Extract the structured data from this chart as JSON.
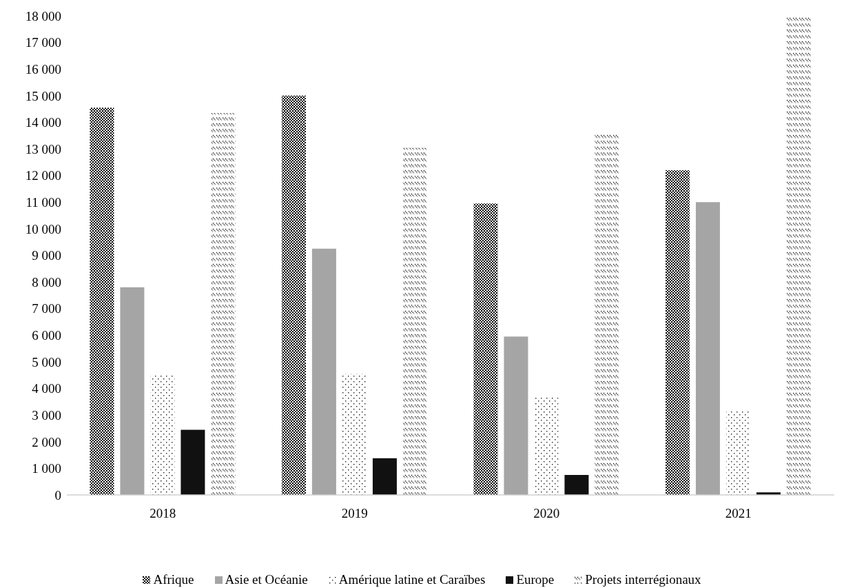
{
  "chart_data": {
    "type": "bar",
    "categories": [
      "2018",
      "2019",
      "2020",
      "2021"
    ],
    "series": [
      {
        "name": "Afrique",
        "color": "#000000",
        "values": [
          14550,
          15000,
          10950,
          12200
        ]
      },
      {
        "name": "Asie et Océanie",
        "color": "#a5a5a5",
        "values": [
          7800,
          9250,
          5950,
          11000
        ]
      },
      {
        "name": "Amérique latine et Caraïbes",
        "color": "#1a1a1a",
        "values": [
          4500,
          4550,
          3700,
          3150
        ]
      },
      {
        "name": "Europe",
        "color": "#111111",
        "values": [
          2450,
          1380,
          750,
          100
        ]
      },
      {
        "name": "Projets interrégionaux",
        "color": "#0d0d0d",
        "values": [
          14350,
          13050,
          13600,
          18000
        ]
      }
    ],
    "ylim": [
      0,
      18000
    ],
    "yticks": [
      {
        "value": 0,
        "label": "0"
      },
      {
        "value": 1000,
        "label": "1 000"
      },
      {
        "value": 2000,
        "label": "2 000"
      },
      {
        "value": 3000,
        "label": "3 000"
      },
      {
        "value": 4000,
        "label": "4 000"
      },
      {
        "value": 5000,
        "label": "5 000"
      },
      {
        "value": 6000,
        "label": "6 000"
      },
      {
        "value": 7000,
        "label": "7 000"
      },
      {
        "value": 8000,
        "label": "8 000"
      },
      {
        "value": 9000,
        "label": "9 000"
      },
      {
        "value": 10000,
        "label": "10 000"
      },
      {
        "value": 11000,
        "label": "11 000"
      },
      {
        "value": 12000,
        "label": "12 000"
      },
      {
        "value": 13000,
        "label": "13 000"
      },
      {
        "value": 14000,
        "label": "14 000"
      },
      {
        "value": 15000,
        "label": "15 000"
      },
      {
        "value": 16000,
        "label": "16 000"
      },
      {
        "value": 17000,
        "label": "17 000"
      },
      {
        "value": 18000,
        "label": "18 000"
      }
    ],
    "grid": false,
    "legend": "bottom"
  }
}
